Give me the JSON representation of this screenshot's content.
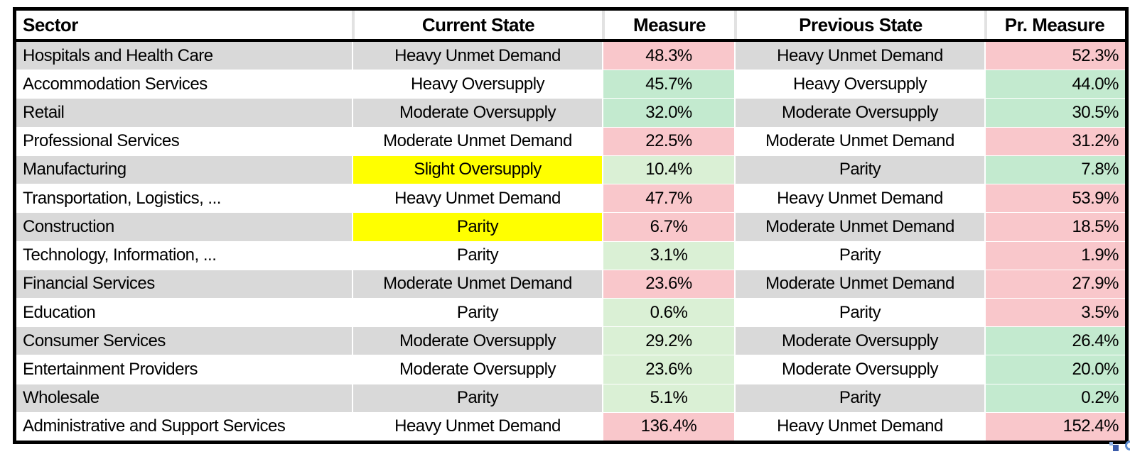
{
  "table": {
    "columns": [
      {
        "key": "sector",
        "label": "Sector"
      },
      {
        "key": "current_state",
        "label": "Current State"
      },
      {
        "key": "measure",
        "label": "Measure"
      },
      {
        "key": "previous_state",
        "label": "Previous State"
      },
      {
        "key": "pr_measure",
        "label": "Pr. Measure"
      }
    ],
    "rows": [
      {
        "zebra": "gray",
        "sector": "Hospitals and Health Care",
        "current_state": "Heavy Unmet Demand",
        "current_state_highlight": false,
        "measure": "48.3%",
        "measure_color": "red",
        "previous_state": "Heavy Unmet Demand",
        "pr_measure": "52.3%",
        "pr_measure_color": "red"
      },
      {
        "zebra": "white",
        "sector": "Accommodation Services",
        "current_state": "Heavy Oversupply",
        "current_state_highlight": false,
        "measure": "45.7%",
        "measure_color": "green_strong",
        "previous_state": "Heavy Oversupply",
        "pr_measure": "44.0%",
        "pr_measure_color": "green_strong"
      },
      {
        "zebra": "gray",
        "sector": "Retail",
        "current_state": "Moderate Oversupply",
        "current_state_highlight": false,
        "measure": "32.0%",
        "measure_color": "green_strong",
        "previous_state": "Moderate Oversupply",
        "pr_measure": "30.5%",
        "pr_measure_color": "green_strong"
      },
      {
        "zebra": "white",
        "sector": "Professional Services",
        "current_state": "Moderate Unmet Demand",
        "current_state_highlight": false,
        "measure": "22.5%",
        "measure_color": "red",
        "previous_state": "Moderate Unmet Demand",
        "pr_measure": "31.2%",
        "pr_measure_color": "red"
      },
      {
        "zebra": "gray",
        "sector": "Manufacturing",
        "current_state": "Slight Oversupply",
        "current_state_highlight": true,
        "measure": "10.4%",
        "measure_color": "green_light",
        "previous_state": "Parity",
        "pr_measure": "7.8%",
        "pr_measure_color": "green_strong"
      },
      {
        "zebra": "white",
        "sector": "Transportation, Logistics, ...",
        "current_state": "Heavy Unmet Demand",
        "current_state_highlight": false,
        "measure": "47.7%",
        "measure_color": "red",
        "previous_state": "Heavy Unmet Demand",
        "pr_measure": "53.9%",
        "pr_measure_color": "red"
      },
      {
        "zebra": "gray",
        "sector": "Construction",
        "current_state": "Parity",
        "current_state_highlight": true,
        "measure": "6.7%",
        "measure_color": "red",
        "previous_state": "Moderate Unmet Demand",
        "pr_measure": "18.5%",
        "pr_measure_color": "red"
      },
      {
        "zebra": "white",
        "sector": "Technology, Information, ...",
        "current_state": "Parity",
        "current_state_highlight": false,
        "measure": "3.1%",
        "measure_color": "green_light",
        "previous_state": "Parity",
        "pr_measure": "1.9%",
        "pr_measure_color": "red"
      },
      {
        "zebra": "gray",
        "sector": "Financial Services",
        "current_state": "Moderate Unmet Demand",
        "current_state_highlight": false,
        "measure": "23.6%",
        "measure_color": "red",
        "previous_state": "Moderate Unmet Demand",
        "pr_measure": "27.9%",
        "pr_measure_color": "red"
      },
      {
        "zebra": "white",
        "sector": "Education",
        "current_state": "Parity",
        "current_state_highlight": false,
        "measure": "0.6%",
        "measure_color": "green_light",
        "previous_state": "Parity",
        "pr_measure": "3.5%",
        "pr_measure_color": "red"
      },
      {
        "zebra": "gray",
        "sector": "Consumer Services",
        "current_state": "Moderate Oversupply",
        "current_state_highlight": false,
        "measure": "29.2%",
        "measure_color": "green_light",
        "previous_state": "Moderate Oversupply",
        "pr_measure": "26.4%",
        "pr_measure_color": "green_strong"
      },
      {
        "zebra": "white",
        "sector": "Entertainment Providers",
        "current_state": "Moderate Oversupply",
        "current_state_highlight": false,
        "measure": "23.6%",
        "measure_color": "green_light",
        "previous_state": "Moderate Oversupply",
        "pr_measure": "20.0%",
        "pr_measure_color": "green_strong"
      },
      {
        "zebra": "gray",
        "sector": "Wholesale",
        "current_state": "Parity",
        "current_state_highlight": false,
        "measure": "5.1%",
        "measure_color": "green_light",
        "previous_state": "Parity",
        "pr_measure": "0.2%",
        "pr_measure_color": "green_strong"
      },
      {
        "zebra": "white",
        "sector": "Administrative and Support Services",
        "current_state": "Heavy Unmet Demand",
        "current_state_highlight": false,
        "measure": "136.4%",
        "measure_color": "red",
        "previous_state": "Heavy Unmet Demand",
        "pr_measure": "152.4%",
        "pr_measure_color": "red"
      }
    ]
  },
  "colors": {
    "red": "#F9C7CB",
    "green_strong": "#C3EACF",
    "green_light": "#DAF0D5",
    "highlight_yellow": "#FFFF00",
    "row_gray": "#D9D9D9",
    "row_white": "#FFFFFF",
    "border_black": "#000000",
    "icon_blue_dark": "#3A5BA9",
    "icon_blue_light": "#8FB2E3"
  },
  "icons": {
    "bottom_right": "quick-analysis-mini-chart-icon"
  }
}
